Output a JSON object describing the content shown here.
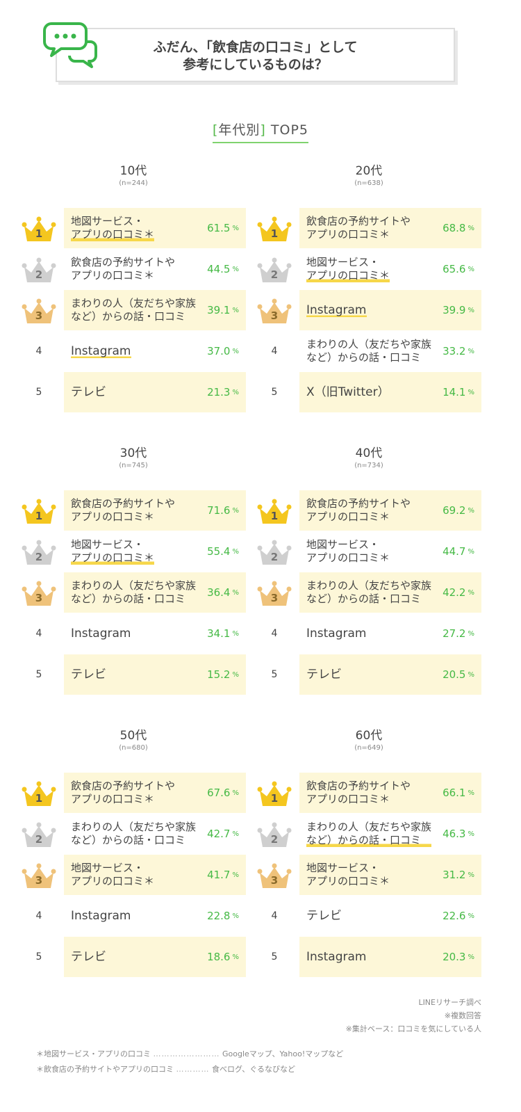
{
  "header": {
    "title_line1": "ふだん、「飲食店の口コミ」として",
    "title_line2": "参考にしているものは？"
  },
  "subheading": {
    "bracket_open": "[",
    "label": "年代別",
    "bracket_close": "]",
    "suffix": " TOP5"
  },
  "colors": {
    "accent_green": "#45b945",
    "highlight": "#fdf7d8",
    "underline": "#f6d74a",
    "gold": "#f4c61f",
    "silver": "#cfcfcf",
    "bronze": "#efc27a"
  },
  "chart_data": [
    {
      "type": "table",
      "age": "10代",
      "n": "(n=244)",
      "rows": [
        {
          "rank": "1",
          "label": "地図サービス・\nアプリの口コミ＊",
          "value": 61.5,
          "unit": "%"
        },
        {
          "rank": "2",
          "label": "飲食店の予約サイトや\nアプリの口コミ＊",
          "value": 44.5,
          "unit": "%"
        },
        {
          "rank": "3",
          "label": "まわりの人（友だちや家族\nなど）からの話・口コミ",
          "value": 39.1,
          "unit": "%"
        },
        {
          "rank": "4",
          "label": "Instagram",
          "value": 37.0,
          "unit": "%"
        },
        {
          "rank": "5",
          "label": "テレビ",
          "value": 21.3,
          "unit": "%"
        }
      ]
    },
    {
      "type": "table",
      "age": "20代",
      "n": "(n=638)",
      "rows": [
        {
          "rank": "1",
          "label": "飲食店の予約サイトや\nアプリの口コミ＊",
          "value": 68.8,
          "unit": "%"
        },
        {
          "rank": "2",
          "label": "地図サービス・\nアプリの口コミ＊",
          "value": 65.6,
          "unit": "%"
        },
        {
          "rank": "3",
          "label": "Instagram",
          "value": 39.9,
          "unit": "%"
        },
        {
          "rank": "4",
          "label": "まわりの人（友だちや家族\nなど）からの話・口コミ",
          "value": 33.2,
          "unit": "%"
        },
        {
          "rank": "5",
          "label": "X（旧Twitter）",
          "value": 14.1,
          "unit": "%"
        }
      ]
    },
    {
      "type": "table",
      "age": "30代",
      "n": "(n=745)",
      "rows": [
        {
          "rank": "1",
          "label": "飲食店の予約サイトや\nアプリの口コミ＊",
          "value": 71.6,
          "unit": "%"
        },
        {
          "rank": "2",
          "label": "地図サービス・\nアプリの口コミ＊",
          "value": 55.4,
          "unit": "%"
        },
        {
          "rank": "3",
          "label": "まわりの人（友だちや家族\nなど）からの話・口コミ",
          "value": 36.4,
          "unit": "%"
        },
        {
          "rank": "4",
          "label": "Instagram",
          "value": 34.1,
          "unit": "%"
        },
        {
          "rank": "5",
          "label": "テレビ",
          "value": 15.2,
          "unit": "%"
        }
      ]
    },
    {
      "type": "table",
      "age": "40代",
      "n": "(n=734)",
      "rows": [
        {
          "rank": "1",
          "label": "飲食店の予約サイトや\nアプリの口コミ＊",
          "value": 69.2,
          "unit": "%"
        },
        {
          "rank": "2",
          "label": "地図サービス・\nアプリの口コミ＊",
          "value": 44.7,
          "unit": "%"
        },
        {
          "rank": "3",
          "label": "まわりの人（友だちや家族\nなど）からの話・口コミ",
          "value": 42.2,
          "unit": "%"
        },
        {
          "rank": "4",
          "label": "Instagram",
          "value": 27.2,
          "unit": "%"
        },
        {
          "rank": "5",
          "label": "テレビ",
          "value": 20.5,
          "unit": "%"
        }
      ]
    },
    {
      "type": "table",
      "age": "50代",
      "n": "(n=680)",
      "rows": [
        {
          "rank": "1",
          "label": "飲食店の予約サイトや\nアプリの口コミ＊",
          "value": 67.6,
          "unit": "%"
        },
        {
          "rank": "2",
          "label": "まわりの人（友だちや家族\nなど）からの話・口コミ",
          "value": 42.7,
          "unit": "%"
        },
        {
          "rank": "3",
          "label": "地図サービス・\nアプリの口コミ＊",
          "value": 41.7,
          "unit": "%"
        },
        {
          "rank": "4",
          "label": "Instagram",
          "value": 22.8,
          "unit": "%"
        },
        {
          "rank": "5",
          "label": "テレビ",
          "value": 18.6,
          "unit": "%"
        }
      ]
    },
    {
      "type": "table",
      "age": "60代",
      "n": "(n=649)",
      "rows": [
        {
          "rank": "1",
          "label": "飲食店の予約サイトや\nアプリの口コミ＊",
          "value": 66.1,
          "unit": "%"
        },
        {
          "rank": "2",
          "label": "まわりの人（友だちや家族\nなど）からの話・口コミ",
          "value": 46.3,
          "unit": "%"
        },
        {
          "rank": "3",
          "label": "地図サービス・\nアプリの口コミ＊",
          "value": 31.2,
          "unit": "%"
        },
        {
          "rank": "4",
          "label": "テレビ",
          "value": 22.6,
          "unit": "%"
        },
        {
          "rank": "5",
          "label": "Instagram",
          "value": 20.3,
          "unit": "%"
        }
      ]
    }
  ],
  "source": {
    "line1": "LINEリサーチ調べ",
    "line2": "※複数回答",
    "line3": "※集計ベース：口コミを気にしている人"
  },
  "notes": [
    {
      "term": "＊地図サービス・アプリの口コミ",
      "dots": "……………………",
      "desc": "Googleマップ、Yahoo!マップなど"
    },
    {
      "term": "＊飲食店の予約サイトやアプリの口コミ",
      "dots": "…………",
      "desc": "食べログ、ぐるなびなど"
    }
  ]
}
